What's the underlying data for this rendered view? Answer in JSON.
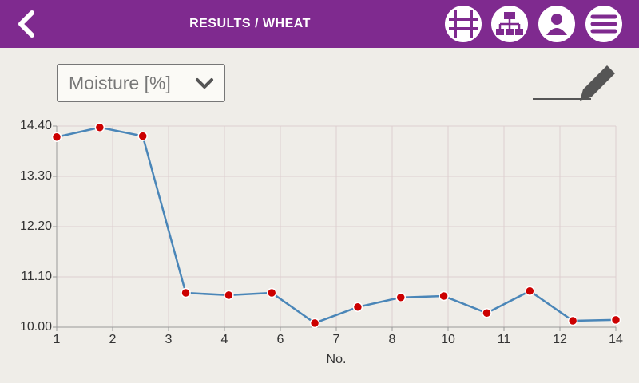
{
  "header": {
    "title": "RESULTS / WHEAT"
  },
  "selector": {
    "label": "Moisture [%]"
  },
  "chart_data": {
    "type": "line",
    "x": [
      1,
      2,
      3,
      4,
      5,
      6,
      7,
      8,
      9,
      10,
      11,
      12,
      13,
      14
    ],
    "series": [
      {
        "color": "#4a86b8",
        "marker_color": "#cc0000",
        "values": [
          14.16,
          14.37,
          14.18,
          10.75,
          10.7,
          10.75,
          10.09,
          10.44,
          10.65,
          10.68,
          10.31,
          10.79,
          10.14,
          10.16
        ]
      }
    ],
    "xlim": [
      1,
      14
    ],
    "ylim": [
      10,
      14.4
    ],
    "xticks": [
      {
        "value": 1,
        "label": "1"
      },
      {
        "value": 2.3,
        "label": "2"
      },
      {
        "value": 3.6,
        "label": "3"
      },
      {
        "value": 4.9,
        "label": "4"
      },
      {
        "value": 6.2,
        "label": "6"
      },
      {
        "value": 7.5,
        "label": "7"
      },
      {
        "value": 8.8,
        "label": "8"
      },
      {
        "value": 10.1,
        "label": "10"
      },
      {
        "value": 11.4,
        "label": "11"
      },
      {
        "value": 12.7,
        "label": "12"
      },
      {
        "value": 14,
        "label": "14"
      }
    ],
    "yticks": [
      {
        "value": 10,
        "label": "10.00"
      },
      {
        "value": 11.1,
        "label": "11.10"
      },
      {
        "value": 12.2,
        "label": "12.20"
      },
      {
        "value": 13.3,
        "label": "13.30"
      },
      {
        "value": 14.4,
        "label": "14.40"
      }
    ],
    "xlabel": "No.",
    "grid": true
  }
}
